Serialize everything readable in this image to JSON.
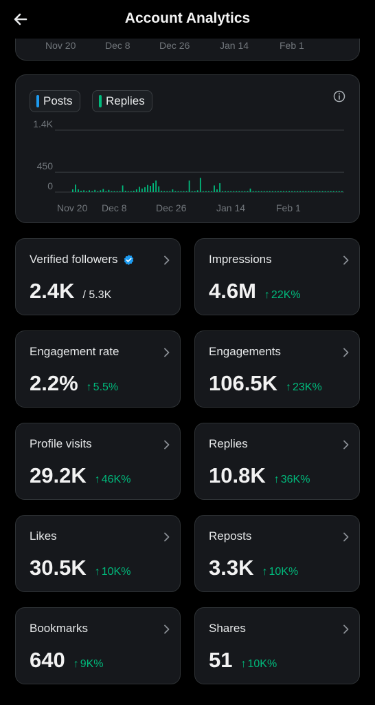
{
  "header": {
    "title": "Account Analytics",
    "back_icon": "arrow-left-icon"
  },
  "top_axis_labels": [
    "Nov 20",
    "Dec 8",
    "Dec 26",
    "Jan 14",
    "Feb 1"
  ],
  "chart": {
    "legend_posts": "Posts",
    "legend_replies": "Replies",
    "info_icon": "info-icon",
    "colors": {
      "posts": "#1d9bf0",
      "replies": "#00ba7c",
      "grid": "#3a3e42",
      "text": "#71767b"
    }
  },
  "chart_data": {
    "type": "bar",
    "series": [
      {
        "name": "Replies",
        "color": "#00ba7c"
      }
    ],
    "y_ticks": [
      "1.4K",
      "450",
      "0"
    ],
    "y_tick_values": [
      1400,
      450,
      0
    ],
    "x_tick_labels": [
      "Nov 20",
      "Dec 8",
      "Dec 26",
      "Jan 14",
      "Feb 1"
    ],
    "ylim": [
      0,
      1400
    ],
    "values": [
      60,
      170,
      60,
      30,
      40,
      20,
      40,
      20,
      50,
      20,
      40,
      70,
      20,
      50,
      20,
      20,
      20,
      20,
      150,
      30,
      20,
      20,
      30,
      60,
      120,
      80,
      110,
      160,
      140,
      200,
      260,
      130,
      30,
      20,
      20,
      20,
      60,
      20,
      20,
      20,
      20,
      20,
      260,
      20,
      20,
      40,
      320,
      20,
      20,
      20,
      20,
      150,
      60,
      200,
      20,
      20,
      20,
      20,
      20,
      20,
      20,
      20,
      20,
      20,
      80,
      20,
      20,
      20,
      20,
      20,
      20,
      20,
      20,
      20,
      20,
      20,
      20,
      20,
      20,
      20,
      20,
      20,
      20,
      20,
      20,
      20,
      20,
      20,
      20,
      20,
      20,
      20,
      20,
      20,
      20,
      20,
      20,
      20
    ],
    "grid": true
  },
  "stats": [
    {
      "label": "Verified followers",
      "value": "2.4K",
      "sub": "/ 5.3K",
      "delta": "",
      "verified": true
    },
    {
      "label": "Impressions",
      "value": "4.6M",
      "sub": "",
      "delta": "22K%"
    },
    {
      "label": "Engagement rate",
      "value": "2.2%",
      "sub": "",
      "delta": "5.5%"
    },
    {
      "label": "Engagements",
      "value": "106.5K",
      "sub": "",
      "delta": "23K%"
    },
    {
      "label": "Profile visits",
      "value": "29.2K",
      "sub": "",
      "delta": "46K%"
    },
    {
      "label": "Replies",
      "value": "10.8K",
      "sub": "",
      "delta": "36K%"
    },
    {
      "label": "Likes",
      "value": "30.5K",
      "sub": "",
      "delta": "10K%"
    },
    {
      "label": "Reposts",
      "value": "3.3K",
      "sub": "",
      "delta": "10K%"
    },
    {
      "label": "Bookmarks",
      "value": "640",
      "sub": "",
      "delta": "9K%"
    },
    {
      "label": "Shares",
      "value": "51",
      "sub": "",
      "delta": "10K%"
    }
  ],
  "icons": {
    "chevron": "chevron-right-icon",
    "verified": "verified-badge-icon",
    "delta_arrow": "arrow-up-icon"
  }
}
